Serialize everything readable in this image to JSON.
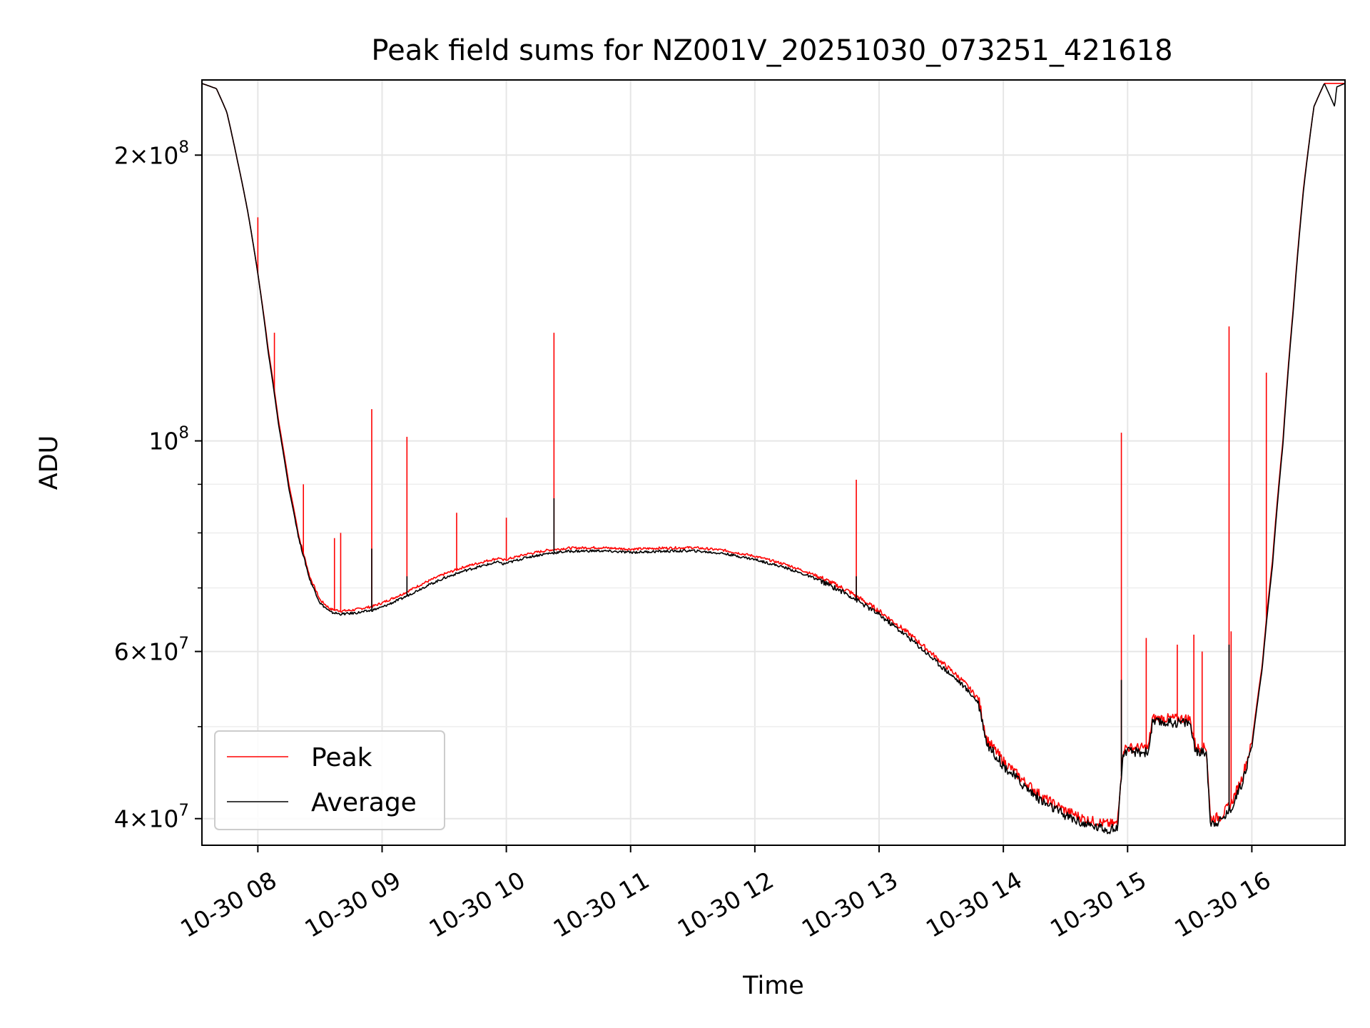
{
  "chart_data": {
    "type": "line",
    "title": "Peak field sums for NZ001V_20251030_073251_421618",
    "xlabel": "Time",
    "ylabel": "ADU",
    "yscale": "log",
    "ylim": [
      37500000,
      240000000
    ],
    "xlim": [
      "2025-10-30 07:33",
      "2025-10-30 16:45"
    ],
    "grid": true,
    "legend_position": "lower-left",
    "x_ticks": [
      "10-30 08",
      "10-30 09",
      "10-30 10",
      "10-30 11",
      "10-30 12",
      "10-30 13",
      "10-30 14",
      "10-30 15",
      "10-30 16"
    ],
    "x_tick_hours": [
      8,
      9,
      10,
      11,
      12,
      13,
      14,
      15,
      16
    ],
    "y_ticks": [
      {
        "value": 40000000,
        "mantissa": "4",
        "exponent": "7"
      },
      {
        "value": 60000000,
        "mantissa": "6",
        "exponent": "7"
      },
      {
        "value": 100000000,
        "mantissa": "",
        "exponent": "8"
      },
      {
        "value": 200000000,
        "mantissa": "2",
        "exponent": "8"
      }
    ],
    "y_minor_ticks": [
      50000000,
      70000000,
      80000000,
      90000000
    ],
    "series": [
      {
        "name": "Peak",
        "color": "#ff0000",
        "baseline": [
          [
            "07:33",
            238000000
          ],
          [
            "07:40",
            235000000
          ],
          [
            "07:45",
            222000000
          ],
          [
            "07:50",
            198000000
          ],
          [
            "07:55",
            175000000
          ],
          [
            "08:00",
            150000000
          ],
          [
            "08:05",
            125000000
          ],
          [
            "08:10",
            105000000
          ],
          [
            "08:15",
            90000000
          ],
          [
            "08:20",
            79000000
          ],
          [
            "08:25",
            72000000
          ],
          [
            "08:30",
            68000000
          ],
          [
            "08:35",
            66500000
          ],
          [
            "08:40",
            66200000
          ],
          [
            "08:45",
            66300000
          ],
          [
            "08:50",
            66600000
          ],
          [
            "08:55",
            66900000
          ],
          [
            "09:00",
            67500000
          ],
          [
            "09:10",
            69000000
          ],
          [
            "09:20",
            70800000
          ],
          [
            "09:30",
            72400000
          ],
          [
            "09:40",
            73700000
          ],
          [
            "09:50",
            74700000
          ],
          [
            "09:57",
            75300000
          ],
          [
            "09:58",
            74800000
          ],
          [
            "10:10",
            76000000
          ],
          [
            "10:20",
            76700000
          ],
          [
            "10:30",
            77100000
          ],
          [
            "10:45",
            77200000
          ],
          [
            "11:00",
            76900000
          ],
          [
            "11:15",
            77100000
          ],
          [
            "11:30",
            77200000
          ],
          [
            "11:45",
            76700000
          ],
          [
            "12:00",
            75600000
          ],
          [
            "12:15",
            74100000
          ],
          [
            "12:30",
            72100000
          ],
          [
            "12:45",
            69500000
          ],
          [
            "13:00",
            66200000
          ],
          [
            "13:15",
            62500000
          ],
          [
            "13:30",
            58500000
          ],
          [
            "13:40",
            56000000
          ],
          [
            "13:48",
            53500000
          ],
          [
            "13:52",
            48500000
          ],
          [
            "14:00",
            46000000
          ],
          [
            "14:10",
            43800000
          ],
          [
            "14:20",
            42000000
          ],
          [
            "14:30",
            40800000
          ],
          [
            "14:40",
            39900000
          ],
          [
            "14:50",
            39500000
          ],
          [
            "14:55",
            39500000
          ],
          [
            "14:58",
            47500000
          ],
          [
            "15:10",
            47500000
          ],
          [
            "15:12",
            51000000
          ],
          [
            "15:30",
            51000000
          ],
          [
            "15:33",
            47500000
          ],
          [
            "15:38",
            47500000
          ],
          [
            "15:40",
            40000000
          ],
          [
            "15:45",
            40200000
          ],
          [
            "15:50",
            41500000
          ],
          [
            "15:55",
            44000000
          ],
          [
            "16:00",
            48000000
          ],
          [
            "16:05",
            58000000
          ],
          [
            "16:10",
            75000000
          ],
          [
            "16:15",
            100000000
          ],
          [
            "16:20",
            138000000
          ],
          [
            "16:25",
            185000000
          ],
          [
            "16:30",
            225000000
          ],
          [
            "16:35",
            238000000
          ],
          [
            "16:45",
            238000000
          ]
        ],
        "spikes": [
          [
            "08:00",
            172000000
          ],
          [
            "08:08",
            130000000
          ],
          [
            "08:22",
            90000000
          ],
          [
            "08:37",
            79000000
          ],
          [
            "08:40",
            80000000
          ],
          [
            "08:55",
            108000000
          ],
          [
            "09:12",
            101000000
          ],
          [
            "09:36",
            84000000
          ],
          [
            "10:00",
            83000000
          ],
          [
            "10:23",
            130000000
          ],
          [
            "12:49",
            91000000
          ],
          [
            "14:57",
            102000000
          ],
          [
            "15:09",
            62000000
          ],
          [
            "15:24",
            61000000
          ],
          [
            "15:32",
            62500000
          ],
          [
            "15:36",
            60000000
          ],
          [
            "15:49",
            132000000
          ],
          [
            "15:50",
            63000000
          ],
          [
            "16:07",
            118000000
          ]
        ]
      },
      {
        "name": "Average",
        "color": "#000000",
        "baseline": [
          [
            "07:33",
            238000000
          ],
          [
            "07:40",
            235000000
          ],
          [
            "07:45",
            222000000
          ],
          [
            "07:50",
            198000000
          ],
          [
            "07:55",
            175000000
          ],
          [
            "08:00",
            150000000
          ],
          [
            "08:05",
            124000000
          ],
          [
            "08:10",
            104000000
          ],
          [
            "08:15",
            89000000
          ],
          [
            "08:20",
            78500000
          ],
          [
            "08:25",
            71500000
          ],
          [
            "08:30",
            67500000
          ],
          [
            "08:35",
            66000000
          ],
          [
            "08:40",
            65700000
          ],
          [
            "08:45",
            65800000
          ],
          [
            "08:50",
            66000000
          ],
          [
            "08:55",
            66300000
          ],
          [
            "09:00",
            66800000
          ],
          [
            "09:10",
            68300000
          ],
          [
            "09:20",
            70100000
          ],
          [
            "09:30",
            71700000
          ],
          [
            "09:40",
            73000000
          ],
          [
            "09:50",
            74000000
          ],
          [
            "09:57",
            74600000
          ],
          [
            "09:58",
            74100000
          ],
          [
            "10:10",
            75400000
          ],
          [
            "10:20",
            76100000
          ],
          [
            "10:30",
            76500000
          ],
          [
            "10:45",
            76600000
          ],
          [
            "11:00",
            76300000
          ],
          [
            "11:15",
            76500000
          ],
          [
            "11:30",
            76600000
          ],
          [
            "11:45",
            76100000
          ],
          [
            "12:00",
            75000000
          ],
          [
            "12:15",
            73500000
          ],
          [
            "12:30",
            71500000
          ],
          [
            "12:45",
            68900000
          ],
          [
            "13:00",
            65600000
          ],
          [
            "13:15",
            61900000
          ],
          [
            "13:30",
            57900000
          ],
          [
            "13:40",
            55400000
          ],
          [
            "13:48",
            53000000
          ],
          [
            "13:52",
            48000000
          ],
          [
            "14:00",
            45500000
          ],
          [
            "14:10",
            43300000
          ],
          [
            "14:20",
            41500000
          ],
          [
            "14:30",
            40300000
          ],
          [
            "14:40",
            39400000
          ],
          [
            "14:50",
            39000000
          ],
          [
            "14:55",
            39000000
          ],
          [
            "14:58",
            47000000
          ],
          [
            "15:10",
            47000000
          ],
          [
            "15:12",
            50500000
          ],
          [
            "15:30",
            50500000
          ],
          [
            "15:33",
            47000000
          ],
          [
            "15:38",
            47000000
          ],
          [
            "15:40",
            39600000
          ],
          [
            "15:45",
            39800000
          ],
          [
            "15:50",
            41000000
          ],
          [
            "15:55",
            43500000
          ],
          [
            "16:00",
            47500000
          ],
          [
            "16:05",
            57500000
          ],
          [
            "16:10",
            74000000
          ],
          [
            "16:15",
            99000000
          ],
          [
            "16:20",
            137000000
          ],
          [
            "16:25",
            184000000
          ],
          [
            "16:30",
            225000000
          ],
          [
            "16:35",
            238000000
          ],
          [
            "16:40",
            225000000
          ],
          [
            "16:41",
            236000000
          ],
          [
            "16:45",
            238000000
          ]
        ],
        "spikes": [
          [
            "08:08",
            112000000
          ],
          [
            "08:55",
            77000000
          ],
          [
            "09:12",
            72000000
          ],
          [
            "10:23",
            87000000
          ],
          [
            "12:49",
            72000000
          ],
          [
            "14:57",
            56000000
          ],
          [
            "15:49",
            61000000
          ]
        ]
      }
    ]
  }
}
